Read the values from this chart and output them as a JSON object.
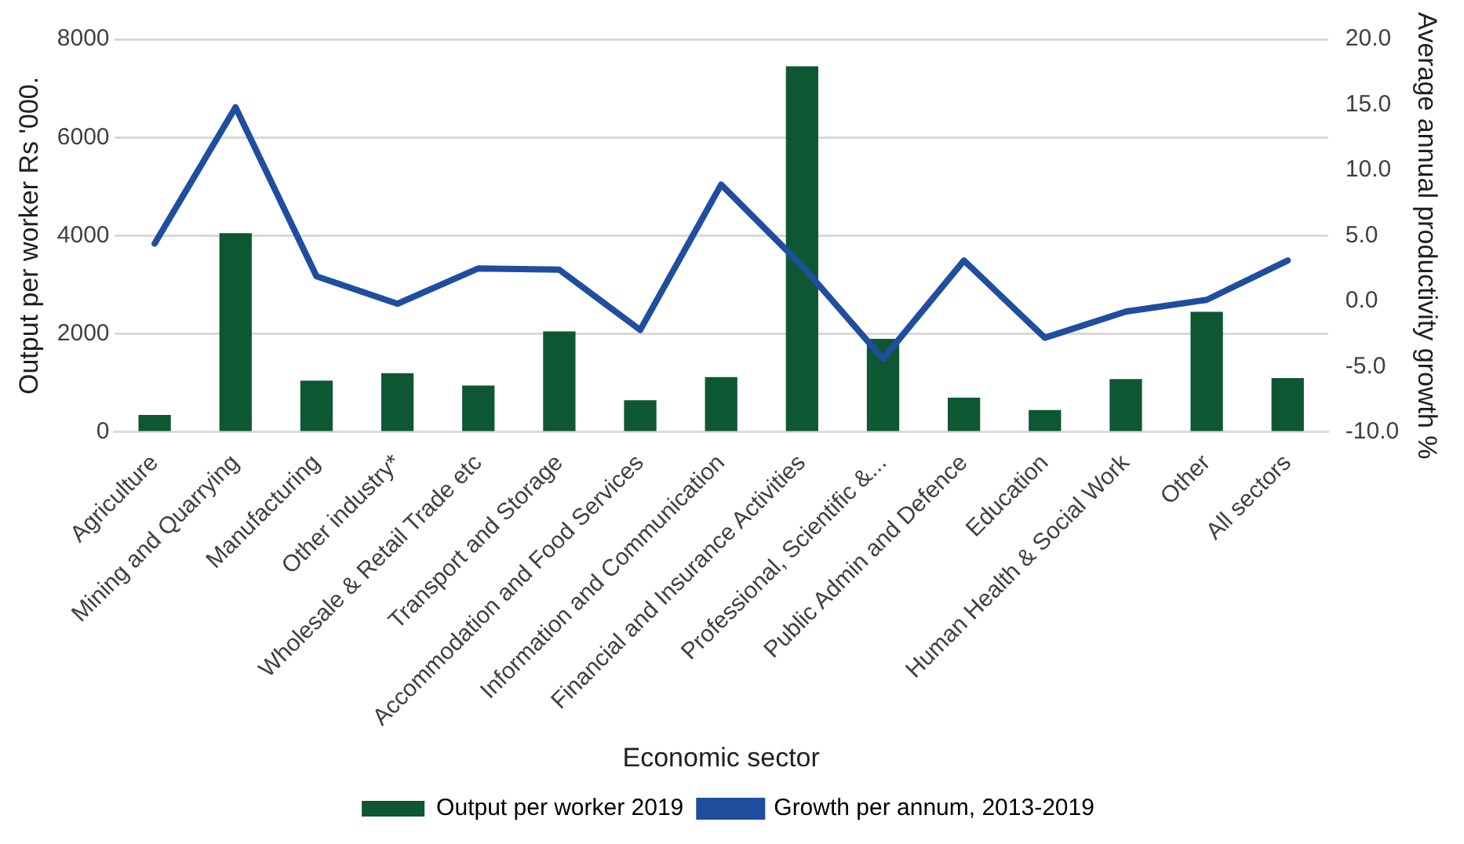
{
  "chart_data": {
    "type": "bar",
    "xlabel": "Economic sector",
    "ylabel": "Output per worker Rs '000.",
    "y2label": "Average annual productivity growth %",
    "categories": [
      "Agriculture",
      "Mining and Quarrying",
      "Manufacturing",
      "Other industry*",
      "Wholesale & Retail Trade etc",
      "Transport and Storage",
      "Accommodation and Food Services",
      "Information and Communication",
      "Financial and Insurance Activities",
      "Professional, Scientific &...",
      "Public Admin and Defence",
      "Education",
      "Human Health & Social Work",
      "Other",
      "All sectors"
    ],
    "series": [
      {
        "name": "Output per worker 2019",
        "color": "#0e5733",
        "values": [
          350,
          4050,
          1050,
          1200,
          950,
          2050,
          650,
          1120,
          7450,
          1900,
          700,
          450,
          1080,
          2450,
          1100
        ]
      },
      {
        "name": "Growth per annum, 2013-2019",
        "type": "line",
        "axis": "y2",
        "color": "#1f4e9e",
        "values": [
          4.4,
          14.8,
          1.9,
          -0.2,
          2.5,
          2.4,
          -2.2,
          8.9,
          2.7,
          -4.4,
          3.1,
          -2.8,
          -0.8,
          0.1,
          3.1
        ]
      }
    ],
    "ylim": [
      0,
      8000
    ],
    "yticks": [
      0,
      2000,
      4000,
      6000,
      8000
    ],
    "y2lim": [
      -10,
      20
    ],
    "y2ticks": [
      {
        "value": -10,
        "label": "-10.0"
      },
      {
        "value": -5,
        "label": "-5.0"
      },
      {
        "value": 0,
        "label": "0.0"
      },
      {
        "value": 5,
        "label": "5.0"
      },
      {
        "value": 10,
        "label": "10.0"
      },
      {
        "value": 15,
        "label": "15.0"
      },
      {
        "value": 20,
        "label": "20.0"
      }
    ],
    "grid": "y",
    "legend": "bottom",
    "marker": "none"
  }
}
